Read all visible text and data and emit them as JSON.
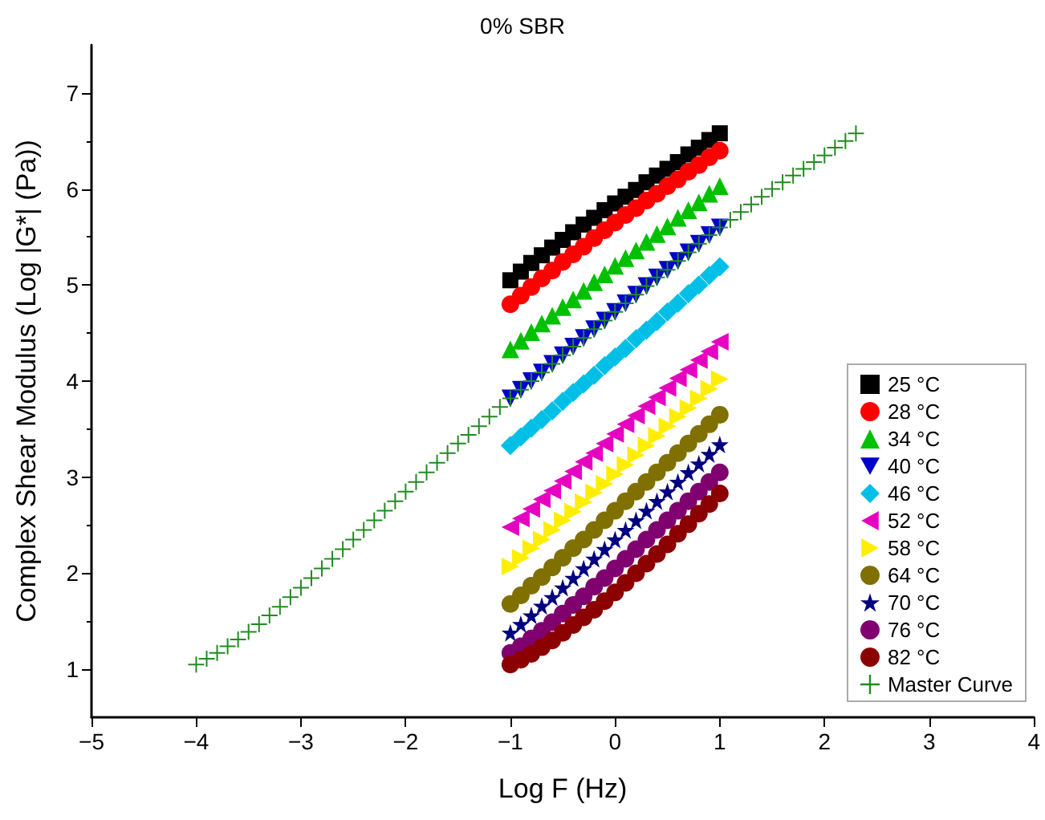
{
  "chart_data": {
    "type": "scatter",
    "title": "0% SBR",
    "xlabel": "Log F (Hz)",
    "ylabel": "Complex Shear Modulus (Log |G*| (Pa))",
    "x": [
      -1,
      -0.9,
      -0.8,
      -0.7,
      -0.6,
      -0.5,
      -0.4,
      -0.3,
      -0.2,
      -0.1,
      0,
      0.1,
      0.2,
      0.3,
      0.4,
      0.5,
      0.6,
      0.7,
      0.8,
      0.9,
      1
    ],
    "xlim": [
      -5,
      4
    ],
    "xticks": [
      {
        "value": -5,
        "label": "−5"
      },
      {
        "value": -4,
        "label": "−4"
      },
      {
        "value": -3,
        "label": "−3"
      },
      {
        "value": -2,
        "label": "−2"
      },
      {
        "value": -1,
        "label": "−1"
      },
      0,
      1,
      2,
      3,
      4
    ],
    "ylim": [
      0.5,
      7.5
    ],
    "yticks": [
      1,
      2,
      3,
      4,
      5,
      6,
      7
    ],
    "grid": false,
    "legend": "bottom right",
    "series": [
      {
        "name": "25 °C",
        "color": "#000000",
        "marker": "square",
        "values": [
          5.05,
          5.14,
          5.23,
          5.31,
          5.39,
          5.47,
          5.55,
          5.63,
          5.7,
          5.78,
          5.85,
          5.92,
          5.99,
          6.07,
          6.14,
          6.21,
          6.28,
          6.36,
          6.43,
          6.51,
          6.58
        ]
      },
      {
        "name": "28 °C",
        "color": "#ff0000",
        "marker": "circle",
        "values": [
          4.8,
          4.89,
          4.98,
          5.07,
          5.15,
          5.24,
          5.32,
          5.4,
          5.49,
          5.57,
          5.65,
          5.73,
          5.8,
          5.88,
          5.95,
          6.03,
          6.1,
          6.18,
          6.25,
          6.33,
          6.4
        ]
      },
      {
        "name": "34 °C",
        "color": "#00c000",
        "marker": "triangle",
        "values": [
          4.33,
          4.42,
          4.51,
          4.6,
          4.68,
          4.77,
          4.85,
          4.94,
          5.03,
          5.11,
          5.2,
          5.28,
          5.36,
          5.45,
          5.53,
          5.61,
          5.7,
          5.78,
          5.86,
          5.95,
          6.03
        ]
      },
      {
        "name": "40 °C",
        "color": "#0000cc",
        "marker": "triangle-down",
        "values": [
          3.82,
          3.91,
          4.0,
          4.09,
          4.18,
          4.27,
          4.36,
          4.45,
          4.54,
          4.63,
          4.72,
          4.81,
          4.9,
          4.99,
          5.08,
          5.16,
          5.25,
          5.34,
          5.43,
          5.52,
          5.6
        ]
      },
      {
        "name": "46 °C",
        "color": "#00bfe6",
        "marker": "diamond",
        "values": [
          3.33,
          3.42,
          3.51,
          3.6,
          3.69,
          3.79,
          3.88,
          3.97,
          4.06,
          4.16,
          4.25,
          4.34,
          4.44,
          4.53,
          4.62,
          4.72,
          4.81,
          4.91,
          5.0,
          5.1,
          5.19
        ]
      },
      {
        "name": "52 °C",
        "color": "#e600c0",
        "marker": "triangle-left",
        "values": [
          2.48,
          2.57,
          2.67,
          2.77,
          2.86,
          2.96,
          3.06,
          3.16,
          3.25,
          3.35,
          3.45,
          3.55,
          3.64,
          3.74,
          3.83,
          3.93,
          4.03,
          4.12,
          4.22,
          4.31,
          4.41
        ]
      },
      {
        "name": "58 °C",
        "color": "#ffee00",
        "marker": "triangle-right",
        "values": [
          2.07,
          2.16,
          2.26,
          2.35,
          2.45,
          2.55,
          2.64,
          2.74,
          2.84,
          2.93,
          3.03,
          3.13,
          3.23,
          3.33,
          3.43,
          3.53,
          3.63,
          3.72,
          3.82,
          3.92,
          4.02
        ]
      },
      {
        "name": "64 °C",
        "color": "#807000",
        "marker": "circle",
        "values": [
          1.68,
          1.77,
          1.87,
          1.96,
          2.06,
          2.16,
          2.26,
          2.35,
          2.45,
          2.55,
          2.65,
          2.75,
          2.85,
          2.95,
          3.05,
          3.15,
          3.25,
          3.35,
          3.45,
          3.55,
          3.65
        ]
      },
      {
        "name": "70 °C",
        "color": "#000080",
        "marker": "star",
        "values": [
          1.38,
          1.47,
          1.56,
          1.66,
          1.75,
          1.85,
          1.95,
          2.05,
          2.15,
          2.25,
          2.35,
          2.45,
          2.55,
          2.65,
          2.75,
          2.85,
          2.95,
          3.05,
          3.14,
          3.24,
          3.34
        ]
      },
      {
        "name": "76 °C",
        "color": "#800070",
        "marker": "circle",
        "values": [
          1.17,
          1.24,
          1.32,
          1.4,
          1.49,
          1.58,
          1.67,
          1.76,
          1.86,
          1.95,
          2.05,
          2.15,
          2.25,
          2.35,
          2.45,
          2.55,
          2.65,
          2.75,
          2.85,
          2.95,
          3.05
        ]
      },
      {
        "name": "82 °C",
        "color": "#8b0000",
        "marker": "circle",
        "values": [
          1.05,
          1.1,
          1.16,
          1.23,
          1.3,
          1.38,
          1.46,
          1.54,
          1.62,
          1.71,
          1.8,
          1.9,
          2.0,
          2.1,
          2.2,
          2.3,
          2.41,
          2.51,
          2.62,
          2.72,
          2.83
        ]
      },
      {
        "name": "Master Curve",
        "color": "#228b22",
        "marker": "cross",
        "x": [
          -4,
          -3.9,
          -3.8,
          -3.7,
          -3.6,
          -3.5,
          -3.4,
          -3.3,
          -3.2,
          -3.1,
          -3,
          -2.9,
          -2.8,
          -2.7,
          -2.6,
          -2.5,
          -2.4,
          -2.3,
          -2.2,
          -2.1,
          -2,
          -1.9,
          -1.8,
          -1.7,
          -1.6,
          -1.5,
          -1.4,
          -1.3,
          -1.2,
          -1.1,
          -1,
          -0.9,
          -0.8,
          -0.7,
          -0.6,
          -0.5,
          -0.4,
          -0.3,
          -0.2,
          -0.1,
          0,
          0.1,
          0.2,
          0.3,
          0.4,
          0.5,
          0.6,
          0.7,
          0.8,
          0.9,
          1,
          1.1,
          1.2,
          1.3,
          1.4,
          1.5,
          1.6,
          1.7,
          1.8,
          1.9,
          2,
          2.1,
          2.2,
          2.3
        ],
        "values": [
          1.05,
          1.11,
          1.17,
          1.24,
          1.31,
          1.39,
          1.47,
          1.56,
          1.65,
          1.75,
          1.85,
          1.95,
          2.05,
          2.15,
          2.25,
          2.35,
          2.45,
          2.55,
          2.65,
          2.75,
          2.85,
          2.95,
          3.05,
          3.15,
          3.25,
          3.35,
          3.44,
          3.53,
          3.63,
          3.73,
          3.82,
          3.91,
          4.0,
          4.09,
          4.18,
          4.27,
          4.36,
          4.45,
          4.54,
          4.63,
          4.72,
          4.81,
          4.9,
          4.99,
          5.08,
          5.16,
          5.25,
          5.34,
          5.43,
          5.52,
          5.6,
          5.68,
          5.76,
          5.84,
          5.92,
          6.0,
          6.07,
          6.14,
          6.21,
          6.28,
          6.35,
          6.43,
          6.5,
          6.58
        ]
      }
    ]
  }
}
